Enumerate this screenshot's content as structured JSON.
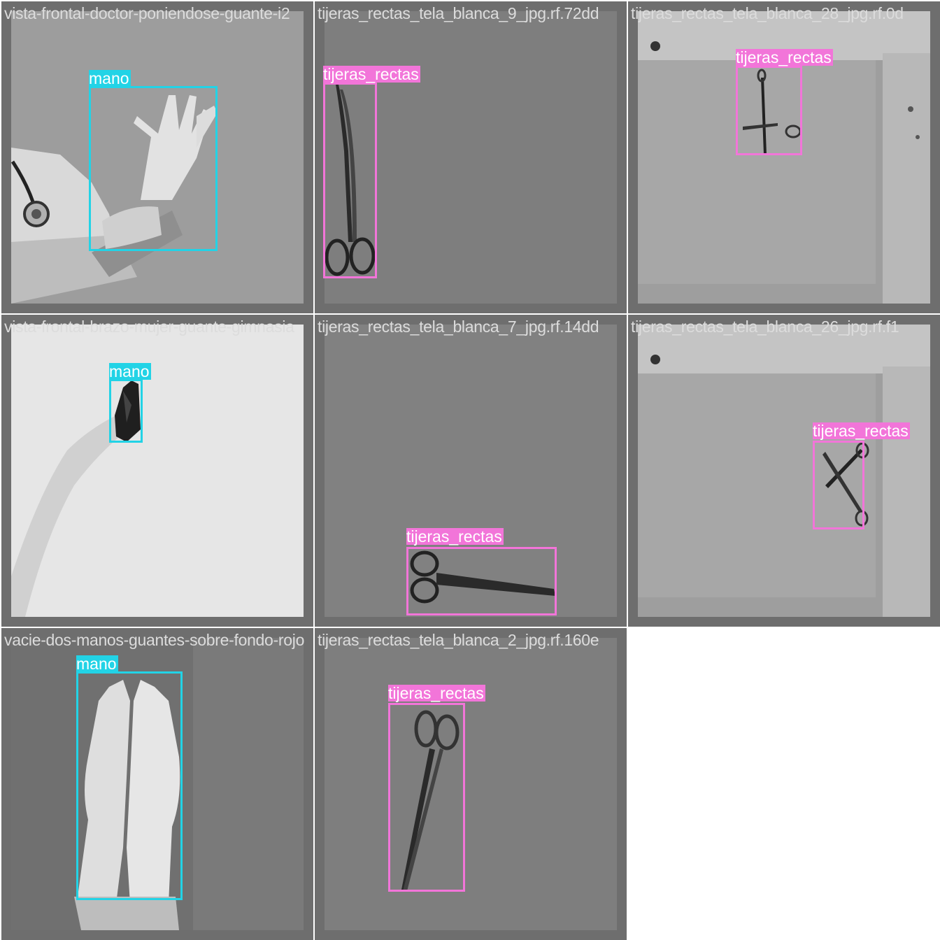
{
  "colors": {
    "mano": "#22d3e6",
    "tijeras_rectas": "#f275d9",
    "tile_bg": "#6e6e6e",
    "filename_text": "#dcdcdc"
  },
  "tiles": [
    {
      "filename": "vista-frontal-doctor-poniendose-guante-i2",
      "label": "mano"
    },
    {
      "filename": "tijeras_rectas_tela_blanca_9_jpg.rf.72dd",
      "label": "tijeras_rectas"
    },
    {
      "filename": "tijeras_rectas_tela_blanca_28_jpg.rf.0d",
      "label": "tijeras_rectas"
    },
    {
      "filename": "vista-frontal-brazo-mujer-guante-gimnasia",
      "label": "mano"
    },
    {
      "filename": "tijeras_rectas_tela_blanca_7_jpg.rf.14dd",
      "label": "tijeras_rectas"
    },
    {
      "filename": "tijeras_rectas_tela_blanca_26_jpg.rf.f1",
      "label": "tijeras_rectas"
    },
    {
      "filename": "vacie-dos-manos-guantes-sobre-fondo-rojo",
      "label": "mano"
    },
    {
      "filename": "tijeras_rectas_tela_blanca_2_jpg.rf.160e",
      "label": "tijeras_rectas"
    }
  ]
}
